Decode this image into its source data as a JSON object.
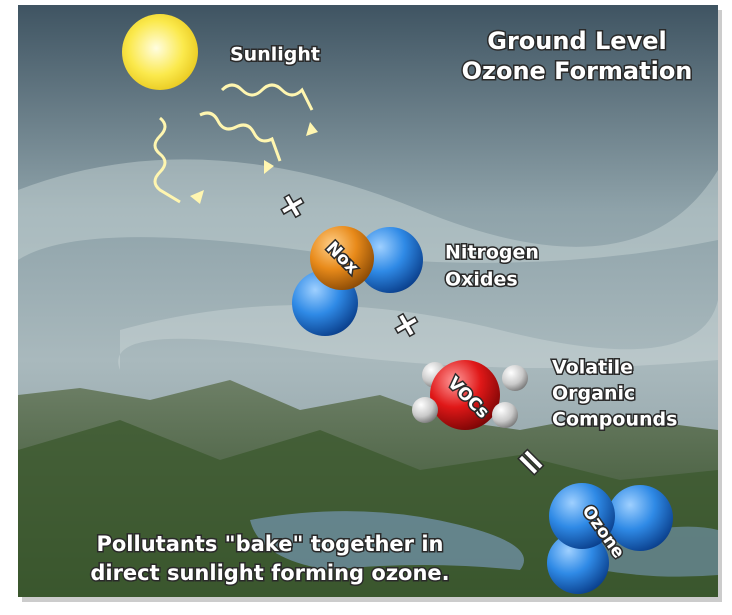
{
  "title": {
    "lines": [
      "Ground Level",
      "Ozone Formation"
    ]
  },
  "sunlight": "Sunlight",
  "operators": [
    "+",
    "+",
    "="
  ],
  "molecules": [
    {
      "label": "Nox",
      "name_lines": [
        "Nitrogen",
        "Oxides"
      ]
    },
    {
      "label": "VOCs",
      "name_lines": [
        "Volatile",
        "Organic",
        "Compounds"
      ]
    },
    {
      "label": "Ozone"
    }
  ],
  "caption": {
    "lines": [
      "Pollutants \"bake\" together in",
      "direct sunlight forming ozone."
    ]
  }
}
